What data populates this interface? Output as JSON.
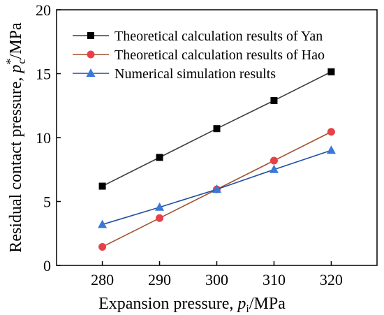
{
  "chart_data": {
    "type": "line",
    "x": [
      280,
      290,
      300,
      310,
      320
    ],
    "xlim": [
      272,
      328
    ],
    "ylim": [
      0,
      20
    ],
    "xticks": [
      280,
      290,
      300,
      310,
      320
    ],
    "yticks": [
      0,
      5,
      10,
      15,
      20
    ],
    "xlabel": {
      "prefix": "Expansion pressure, ",
      "var": "p",
      "sub": "i",
      "suffix": "/MPa"
    },
    "ylabel": {
      "prefix": "Residual contact pressure, ",
      "var": "p",
      "sub": "c",
      "sup": "*",
      "suffix": "/MPa"
    },
    "grid": false,
    "legend_position": "top-right",
    "series": [
      {
        "name": "Theoretical calculation results of Yan",
        "values": [
          6.2,
          8.45,
          10.7,
          12.9,
          15.15
        ],
        "color": "#3f3f3f",
        "marker_color": "#000000",
        "marker": "square"
      },
      {
        "name": "Theoretical calculation results of Hao",
        "values": [
          1.45,
          3.7,
          5.95,
          8.2,
          10.45
        ],
        "color": "#a0522d",
        "marker_color": "#e8404a",
        "marker": "circle"
      },
      {
        "name": "Numerical simulation results",
        "values": [
          3.2,
          4.55,
          5.95,
          7.5,
          9.0
        ],
        "color": "#1f4fa0",
        "marker_color": "#3a78d8",
        "marker": "triangle"
      }
    ]
  }
}
